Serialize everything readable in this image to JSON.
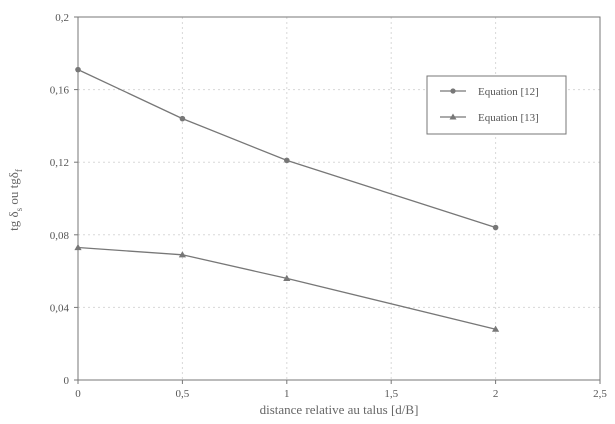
{
  "chart_data": {
    "type": "line",
    "xlabel": "distance relative au talus [d/B]",
    "ylabel_parts": {
      "base": "tg δ",
      "sub1": "s",
      "mid": " ou tgδ",
      "sub2": "f"
    },
    "xlim": [
      0,
      2.5
    ],
    "ylim": [
      0,
      0.2
    ],
    "x_ticks": [
      0,
      0.5,
      1,
      1.5,
      2,
      2.5
    ],
    "x_tick_labels": [
      "0",
      "0,5",
      "1",
      "1,5",
      "2",
      "2,5"
    ],
    "y_ticks": [
      0,
      0.04,
      0.08,
      0.12,
      0.16,
      0.2
    ],
    "y_tick_labels": [
      "0",
      "0,04",
      "0,08",
      "0,12",
      "0,16",
      "0,2"
    ],
    "grid": true,
    "legend_position": "top-right",
    "series": [
      {
        "name": "Equation [12]",
        "marker": "circle",
        "x": [
          0,
          0.5,
          1,
          2
        ],
        "y": [
          0.171,
          0.144,
          0.121,
          0.084
        ]
      },
      {
        "name": "Equation [13]",
        "marker": "triangle",
        "x": [
          0,
          0.5,
          1,
          2
        ],
        "y": [
          0.073,
          0.069,
          0.056,
          0.028
        ]
      }
    ],
    "colors": {
      "series": "#777777",
      "axis": "#777777",
      "grid": "#d8d8d8"
    }
  }
}
